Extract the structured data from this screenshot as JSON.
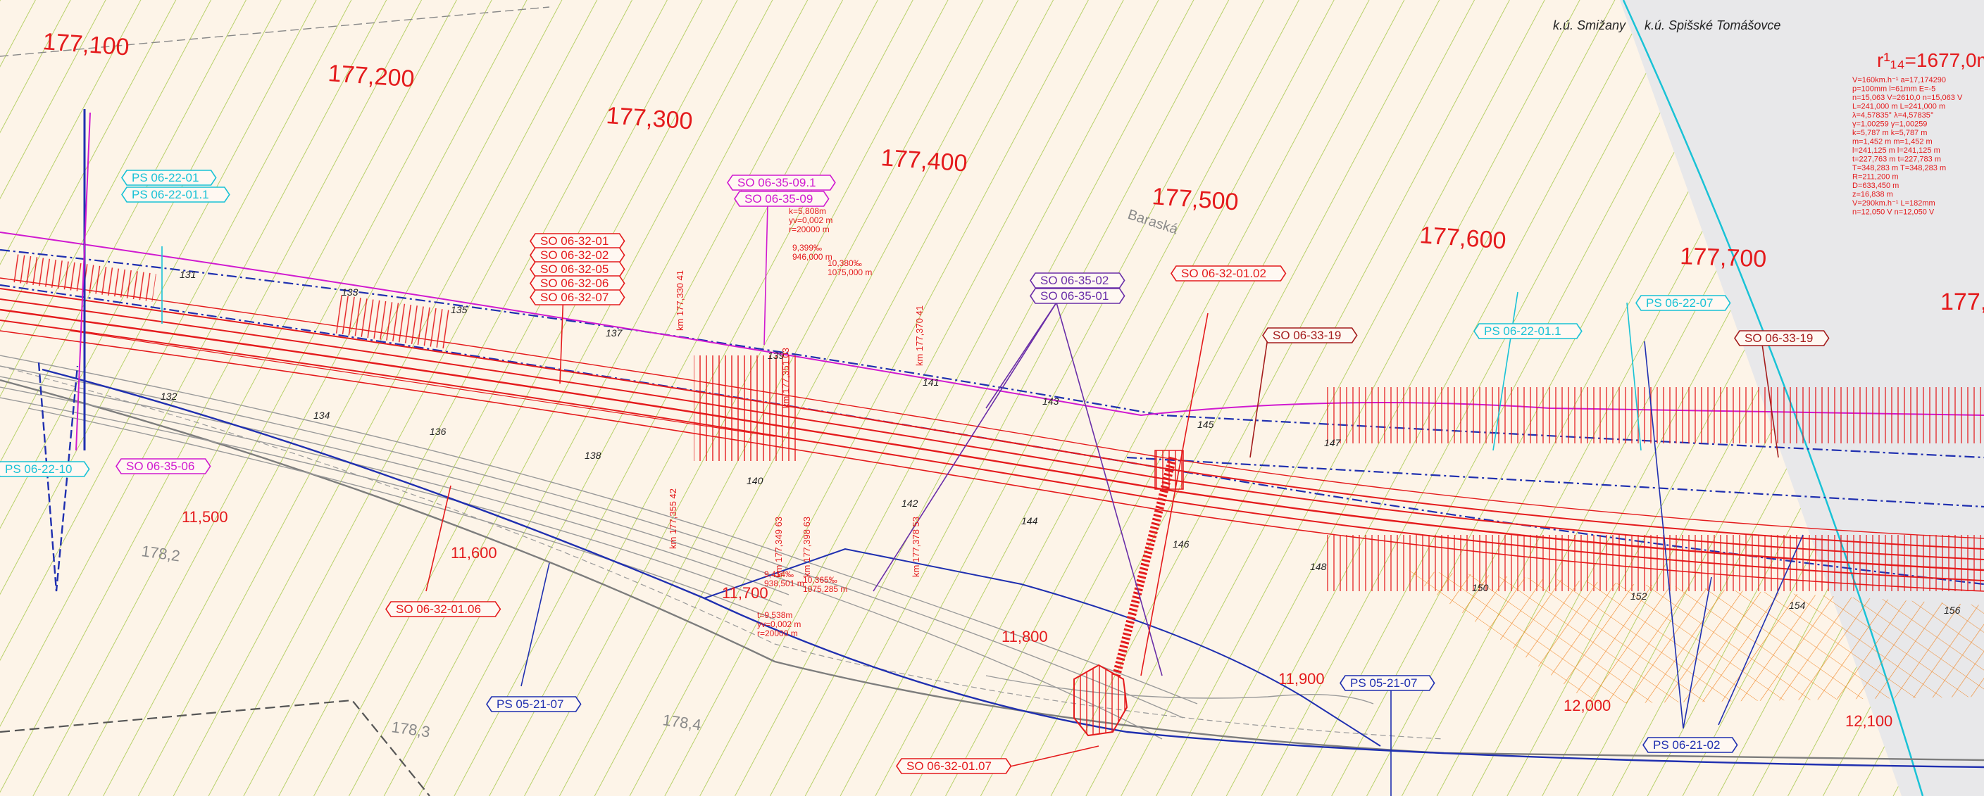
{
  "cadastral": {
    "left": "k.ú. Smižany",
    "right": "k.ú. Spišské Tomášovce"
  },
  "colors": {
    "background": "#fdf4e8",
    "track_red": "#e41a1c",
    "boundary_blue": "#1f2fb0",
    "hatch_green": "#9cc33a",
    "cyan": "#19c2d6",
    "magenta": "#d01ad0",
    "purple": "#6a2ea8",
    "dark_red": "#a41c1c",
    "orange": "#f07f18",
    "grey": "#8a8a8a",
    "right_panel": "#e8e8ea"
  },
  "top_chainages": [
    "177,100",
    "177,200",
    "177,300",
    "177,400",
    "177,500",
    "177,600",
    "177,700",
    "177,"
  ],
  "lower_chainages": [
    "11,500",
    "11,600",
    "11,700",
    "11,800",
    "11,900",
    "12,000",
    "12,100"
  ],
  "grey_chainages": [
    "178,2",
    "178,3",
    "178,4"
  ],
  "profile_numbers": [
    "131",
    "132",
    "133",
    "134",
    "135",
    "136",
    "137",
    "138",
    "139",
    "140",
    "141",
    "142",
    "143",
    "144",
    "145",
    "146",
    "147",
    "148",
    "150",
    "152",
    "154",
    "156"
  ],
  "street": "Baraská",
  "curve": {
    "title": "r¹₁₄=1677,0m",
    "lines": [
      "V=160km.h⁻¹   a=17,174290",
      "p=100mm  l=61mm  E=-5",
      "n=15,063 V=2610,0  n=15,063 V",
      "L=241,000 m    L=241,000 m",
      "λ=4,57835°   λ=4,57835°",
      "γ=1,00259    γ=1,00259",
      "k=5,787 m    k=5,787 m",
      "m=1,452 m    m=1,452 m",
      "l=241,125 m   l=241,125 m",
      "t=227,763 m   t=227,783 m",
      "T=348,283 m   T=348,283 m",
      "R=211,200 m",
      "D=633,450 m",
      "z=16,838 m",
      "V=290km.h⁻¹  L=182mm",
      "n=12,050 V  n=12,050 V"
    ]
  },
  "tags": [
    {
      "id": "ps-06-22-01",
      "label": "PS 06-22-01",
      "color": "#19c2d6"
    },
    {
      "id": "ps-06-22-01-1",
      "label": "PS 06-22-01.1",
      "color": "#19c2d6"
    },
    {
      "id": "so-06-35-09-1",
      "label": "SO 06-35-09.1",
      "color": "#d01ad0"
    },
    {
      "id": "so-06-35-09",
      "label": "SO 06-35-09",
      "color": "#d01ad0"
    },
    {
      "id": "so-06-32-01",
      "label": "SO 06-32-01",
      "color": "#e41a1c"
    },
    {
      "id": "so-06-32-02",
      "label": "SO 06-32-02",
      "color": "#e41a1c"
    },
    {
      "id": "so-06-32-05",
      "label": "SO 06-32-05",
      "color": "#e41a1c"
    },
    {
      "id": "so-06-32-06",
      "label": "SO 06-32-06",
      "color": "#e41a1c"
    },
    {
      "id": "so-06-32-07",
      "label": "SO 06-32-07",
      "color": "#e41a1c"
    },
    {
      "id": "so-06-35-02",
      "label": "SO 06-35-02",
      "color": "#6a2ea8"
    },
    {
      "id": "so-06-35-01",
      "label": "SO 06-35-01",
      "color": "#6a2ea8"
    },
    {
      "id": "so-06-32-01-02",
      "label": "SO 06-32-01.02",
      "color": "#e41a1c"
    },
    {
      "id": "so-06-33-19-a",
      "label": "SO 06-33-19",
      "color": "#a41c1c"
    },
    {
      "id": "ps-06-22-01-1b",
      "label": "PS 06-22-01.1",
      "color": "#19c2d6"
    },
    {
      "id": "ps-06-22-07",
      "label": "PS 06-22-07",
      "color": "#19c2d6"
    },
    {
      "id": "so-06-33-19-b",
      "label": "SO 06-33-19",
      "color": "#a41c1c"
    },
    {
      "id": "so-06-35-06",
      "label": "SO 06-35-06",
      "color": "#d01ad0"
    },
    {
      "id": "ps-06-22-10",
      "label": "PS 06-22-10",
      "color": "#19c2d6"
    },
    {
      "id": "so-06-32-01-06",
      "label": "SO 06-32-01.06",
      "color": "#e41a1c"
    },
    {
      "id": "ps-05-21-07-a",
      "label": "PS 05-21-07",
      "color": "#1f2fb0"
    },
    {
      "id": "so-06-32-01-07",
      "label": "SO 06-32-01.07",
      "color": "#e41a1c"
    },
    {
      "id": "ps-05-21-07-b",
      "label": "PS 05-21-07",
      "color": "#1f2fb0"
    },
    {
      "id": "ps-06-21-02",
      "label": "PS 06-21-02",
      "color": "#1f2fb0"
    }
  ],
  "km_labels": [
    "km 177,330 41",
    "km 177,351 03",
    "km 177,370 41",
    "km 177,349 63",
    "km 177,398 63",
    "km 177,355 42",
    "km 177,378 53"
  ],
  "vertical_curves": [
    {
      "lines": [
        "k=5,808m",
        "yv=0,002 m",
        "r=20000 m"
      ]
    },
    {
      "lines": [
        "9,399‰",
        "946,000 m"
      ]
    },
    {
      "lines": [
        "10,380‰",
        "1075,000 m"
      ]
    },
    {
      "lines": [
        "9,414‰",
        "938,501 m"
      ]
    },
    {
      "lines": [
        "10,365‰",
        "1075,285 m"
      ]
    },
    {
      "lines": [
        "t=9,538m",
        "yv=0,002 m",
        "r=20000 m"
      ]
    }
  ]
}
